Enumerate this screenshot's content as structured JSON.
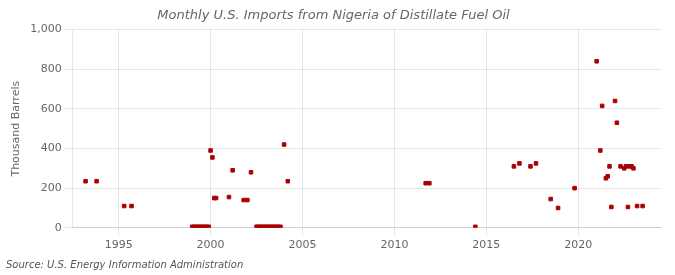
{
  "chart_data": {
    "type": "scatter",
    "title": "Monthly U.S. Imports from Nigeria of Distillate Fuel Oil",
    "ylabel": "Thousand Barrels",
    "annotation": "Source: U.S. Energy Information Administration",
    "color": "#aa0000",
    "marker": "square",
    "grid": true,
    "xlim": [
      1992.5,
      2024.5
    ],
    "xticks": [
      1995,
      2000,
      2005,
      2010,
      2015,
      2020
    ],
    "ylim": [
      0,
      1000
    ],
    "yticks": [
      0,
      200,
      400,
      600,
      800,
      {
        "value": 1000,
        "label": "1,000"
      }
    ],
    "x": [
      1993.2,
      1993.8,
      1995.3,
      1995.7,
      1999.0,
      1999.1,
      1999.2,
      1999.3,
      1999.4,
      1999.5,
      1999.6,
      1999.7,
      1999.8,
      1999.9,
      2000.0,
      2000.1,
      2000.2,
      2000.3,
      2001.0,
      2001.2,
      2001.8,
      2002.0,
      2002.2,
      2002.5,
      2002.6,
      2002.7,
      2002.8,
      2002.9,
      2003.0,
      2003.1,
      2003.2,
      2003.3,
      2003.4,
      2003.5,
      2003.6,
      2003.7,
      2003.8,
      2004.0,
      2004.2,
      2011.7,
      2011.9,
      2014.4,
      2016.5,
      2016.8,
      2017.4,
      2017.7,
      2018.5,
      2018.9,
      2019.8,
      2021.0,
      2021.2,
      2021.3,
      2021.5,
      2021.6,
      2021.7,
      2021.8,
      2022.0,
      2022.1,
      2022.3,
      2022.5,
      2022.6,
      2022.7,
      2022.8,
      2022.9,
      2023.0,
      2023.2,
      2023.5
    ],
    "values": [
      235,
      235,
      110,
      110,
      5,
      5,
      5,
      5,
      5,
      5,
      5,
      5,
      5,
      5,
      390,
      355,
      150,
      150,
      155,
      290,
      140,
      140,
      280,
      5,
      5,
      5,
      5,
      5,
      5,
      5,
      5,
      5,
      5,
      5,
      5,
      5,
      5,
      420,
      235,
      225,
      225,
      5,
      310,
      325,
      310,
      325,
      145,
      100,
      200,
      840,
      390,
      615,
      250,
      260,
      310,
      105,
      640,
      530,
      310,
      300,
      310,
      105,
      310,
      310,
      300,
      110,
      110
    ]
  }
}
